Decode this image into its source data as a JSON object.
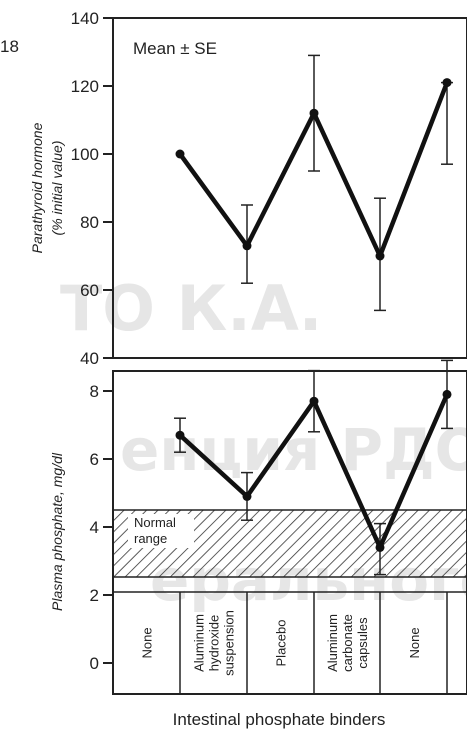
{
  "page_label": "18",
  "watermark": [
    "ТО К.А.",
    "енция РДО",
    "ерального"
  ],
  "annotation": "Mean ± SE",
  "shaded_label": [
    "Normal",
    "range"
  ],
  "chart_data": [
    {
      "type": "line",
      "ylabel": [
        "Parathyroid hormone",
        "(% initial value)"
      ],
      "ylim": [
        40,
        140
      ],
      "yticks": [
        40,
        60,
        80,
        100,
        120,
        140
      ],
      "series": [
        {
          "values": [
            100,
            73,
            112,
            70,
            121
          ],
          "err_low": [
            null,
            62,
            95,
            54,
            97
          ],
          "err_high": [
            null,
            85,
            129,
            87,
            121
          ]
        }
      ]
    },
    {
      "type": "line",
      "ylabel": "Plasma phosphate, mg/dl",
      "yticks": [
        0,
        2,
        4,
        6,
        8
      ],
      "normal_range": [
        2.5,
        4.5
      ],
      "series": [
        {
          "values": [
            6.7,
            4.9,
            7.7,
            3.4,
            7.9
          ],
          "err_low": [
            6.2,
            4.2,
            6.8,
            2.6,
            6.9
          ],
          "err_high": [
            7.2,
            5.6,
            8.6,
            4.1,
            8.9
          ]
        }
      ]
    }
  ],
  "categories": [
    "None",
    "Aluminum hydroxide suspension",
    "Placebo",
    "Aluminum carbonate capsules",
    "None"
  ],
  "category_lines": [
    [
      "None"
    ],
    [
      "Aluminum",
      "hydroxide",
      "suspension"
    ],
    [
      "Placebo"
    ],
    [
      "Aluminum",
      "carbonate",
      "capsules"
    ],
    [
      "None"
    ]
  ],
  "xlabel": "Intestinal phosphate binders",
  "colors": {
    "ink": "#111111",
    "hatch": "#333333",
    "watermark": "#c8c8c8"
  }
}
